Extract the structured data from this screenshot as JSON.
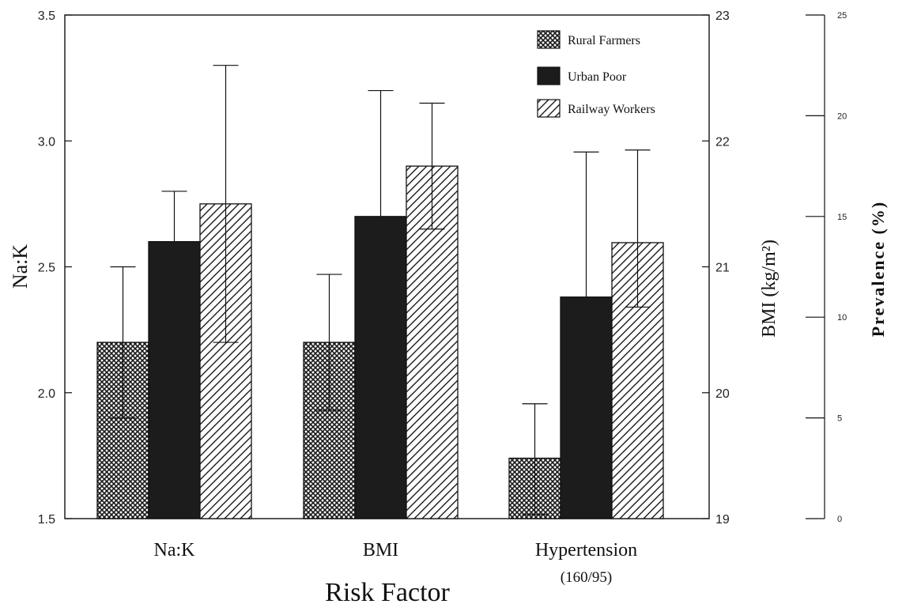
{
  "chart_data": {
    "type": "bar",
    "xlabel": "Risk Factor",
    "categories": [
      {
        "label": "Na:K",
        "sublabel": ""
      },
      {
        "label": "BMI",
        "sublabel": ""
      },
      {
        "label": "Hypertension",
        "sublabel": "(160/95)"
      }
    ],
    "series": [
      {
        "name": "Rural Farmers",
        "pattern": "crosshatch",
        "fill": "#2a2a2a"
      },
      {
        "name": "Urban Poor",
        "pattern": "solid",
        "fill": "#1c1c1c"
      },
      {
        "name": "Railway Workers",
        "pattern": "diagonal",
        "fill": "#1c1c1c"
      }
    ],
    "groups": [
      {
        "category": "Na:K",
        "axis": "left",
        "values": [
          2.2,
          2.6,
          2.75
        ],
        "errors": [
          [
            1.9,
            2.5
          ],
          [
            null,
            2.8
          ],
          [
            2.2,
            3.3
          ]
        ]
      },
      {
        "category": "BMI",
        "axis": "right1",
        "values": [
          20.4,
          21.4,
          21.8
        ],
        "errors": [
          [
            19.86,
            20.94
          ],
          [
            null,
            22.4
          ],
          [
            21.3,
            22.3
          ]
        ]
      },
      {
        "category": "Hypertension",
        "axis": "right2",
        "values": [
          3,
          11,
          13.7
        ],
        "errors": [
          [
            0.2,
            5.7
          ],
          [
            null,
            18.2
          ],
          [
            10.5,
            18.3
          ]
        ]
      }
    ],
    "axes": {
      "left": {
        "label": "Na:K",
        "ylim": [
          1.5,
          3.5
        ],
        "ticks": [
          "1.5",
          "2.0",
          "2.5",
          "3.0",
          "3.5"
        ]
      },
      "right1": {
        "label": "BMI (kg/m²)",
        "ylim": [
          19,
          23
        ],
        "ticks": [
          "19",
          "20",
          "21",
          "22",
          "23"
        ]
      },
      "right2": {
        "label": "Prevalence (%)",
        "ylim": [
          0,
          25
        ],
        "ticks": [
          "0",
          "5",
          "10",
          "15",
          "20",
          "25"
        ]
      }
    },
    "legend": {
      "position": "top-right"
    },
    "grid": false
  }
}
